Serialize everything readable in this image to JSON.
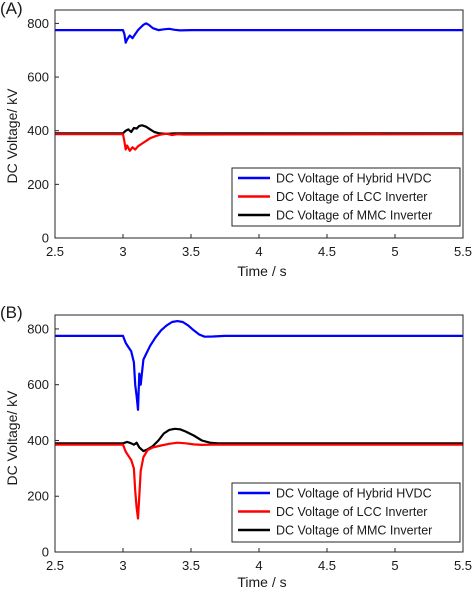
{
  "chart_data": [
    {
      "panel_label": "(A)",
      "type": "line",
      "xlabel": "Time / s",
      "ylabel": "DC Voltage/ kV",
      "xlim": [
        2.5,
        5.5
      ],
      "ylim": [
        0,
        850
      ],
      "xticks": [
        "2.5",
        "3",
        "3.5",
        "4",
        "4.5",
        "5",
        "5.5"
      ],
      "yticks": [
        "0",
        "200",
        "400",
        "600",
        "800"
      ],
      "grid": false,
      "legend_position": "bottom-right",
      "series": [
        {
          "name": "DC Voltage of Hybrid HVDC",
          "color": "#0000ff",
          "x": [
            2.5,
            3.0,
            3.01,
            3.02,
            3.03,
            3.05,
            3.07,
            3.09,
            3.11,
            3.13,
            3.15,
            3.17,
            3.19,
            3.22,
            3.26,
            3.3,
            3.34,
            3.38,
            3.42,
            3.5,
            5.5
          ],
          "y": [
            775,
            775,
            760,
            728,
            740,
            755,
            745,
            760,
            775,
            785,
            795,
            800,
            795,
            782,
            775,
            778,
            780,
            776,
            774,
            775,
            775
          ]
        },
        {
          "name": "DC Voltage of LCC Inverter",
          "color": "#ff0000",
          "x": [
            2.5,
            3.0,
            3.01,
            3.02,
            3.03,
            3.05,
            3.07,
            3.09,
            3.11,
            3.14,
            3.17,
            3.2,
            3.24,
            3.28,
            3.32,
            3.36,
            3.4,
            3.45,
            5.5
          ],
          "y": [
            387,
            387,
            360,
            330,
            345,
            325,
            338,
            330,
            342,
            352,
            362,
            372,
            380,
            386,
            389,
            384,
            387,
            386,
            387
          ]
        },
        {
          "name": "DC Voltage of MMC Inverter",
          "color": "#000000",
          "x": [
            2.5,
            3.0,
            3.02,
            3.04,
            3.06,
            3.08,
            3.1,
            3.12,
            3.14,
            3.17,
            3.2,
            3.23,
            3.27,
            3.32,
            3.38,
            3.45,
            5.5
          ],
          "y": [
            390,
            390,
            400,
            405,
            395,
            410,
            408,
            418,
            420,
            415,
            405,
            395,
            390,
            388,
            390,
            390,
            390
          ]
        }
      ]
    },
    {
      "panel_label": "(B)",
      "type": "line",
      "xlabel": "Time / s",
      "ylabel": "DC Voltage/ kV",
      "xlim": [
        2.5,
        5.5
      ],
      "ylim": [
        0,
        850
      ],
      "xticks": [
        "2.5",
        "3",
        "3.5",
        "4",
        "4.5",
        "5",
        "5.5"
      ],
      "yticks": [
        "0",
        "200",
        "400",
        "600",
        "800"
      ],
      "grid": false,
      "legend_position": "bottom-right",
      "series": [
        {
          "name": "DC Voltage of Hybrid HVDC",
          "color": "#0000ff",
          "x": [
            2.5,
            3.0,
            3.02,
            3.04,
            3.06,
            3.08,
            3.09,
            3.1,
            3.11,
            3.12,
            3.13,
            3.15,
            3.17,
            3.2,
            3.24,
            3.28,
            3.32,
            3.36,
            3.4,
            3.44,
            3.48,
            3.52,
            3.56,
            3.6,
            3.66,
            3.75,
            5.5
          ],
          "y": [
            775,
            775,
            750,
            735,
            720,
            680,
            600,
            560,
            510,
            640,
            600,
            690,
            710,
            740,
            770,
            795,
            812,
            825,
            828,
            825,
            812,
            795,
            780,
            772,
            773,
            775,
            775
          ]
        },
        {
          "name": "DC Voltage of LCC Inverter",
          "color": "#ff0000",
          "x": [
            2.5,
            3.0,
            3.02,
            3.04,
            3.06,
            3.08,
            3.09,
            3.1,
            3.11,
            3.12,
            3.13,
            3.15,
            3.18,
            3.22,
            3.28,
            3.34,
            3.4,
            3.46,
            3.52,
            3.58,
            3.65,
            5.5
          ],
          "y": [
            385,
            385,
            360,
            345,
            330,
            300,
            220,
            160,
            120,
            200,
            290,
            340,
            365,
            375,
            382,
            388,
            392,
            390,
            386,
            384,
            385,
            385
          ]
        },
        {
          "name": "DC Voltage of MMC Inverter",
          "color": "#000000",
          "x": [
            2.5,
            3.0,
            3.03,
            3.06,
            3.08,
            3.1,
            3.12,
            3.15,
            3.18,
            3.22,
            3.26,
            3.3,
            3.34,
            3.38,
            3.42,
            3.46,
            3.52,
            3.58,
            3.64,
            3.7,
            5.5
          ],
          "y": [
            390,
            390,
            395,
            390,
            385,
            392,
            375,
            362,
            368,
            380,
            400,
            425,
            438,
            442,
            440,
            432,
            418,
            400,
            392,
            390,
            390
          ]
        }
      ]
    }
  ]
}
